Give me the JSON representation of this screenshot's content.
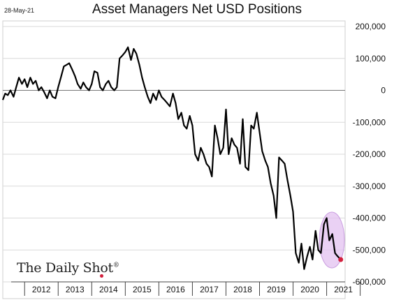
{
  "header": {
    "date_stamp": "28-May-21",
    "title": "Asset Managers Net USD Positions"
  },
  "branding": {
    "name": "The Daily Shot",
    "mark": "®"
  },
  "colors": {
    "line": "#000000",
    "highlight_fill": "#e3c2f0",
    "highlight_stroke": "#c99ce0",
    "end_point": "#d21f3c",
    "grid": "#d9d9d9",
    "zero_line": "#777777"
  },
  "chart_data": {
    "type": "line",
    "title": "Asset Managers Net USD Positions",
    "xlabel": "",
    "ylabel": "",
    "ylim": [
      -600000,
      200000
    ],
    "xlim": [
      2011.35,
      2021.55
    ],
    "yticks": [
      200000,
      100000,
      0,
      -100000,
      -200000,
      -300000,
      -400000,
      -500000,
      -600000
    ],
    "ytick_labels": [
      "200,000",
      "100,000",
      "0",
      "-100,000",
      "-200,000",
      "-300,000",
      "-400,000",
      "-500,000",
      "-600,000"
    ],
    "x_categories": [
      "2012",
      "2013",
      "2014",
      "2015",
      "2016",
      "2017",
      "2018",
      "2019",
      "2020",
      "2021"
    ],
    "grid": true,
    "zero_line": true,
    "legend": "none",
    "highlight": "ellipse around 2021 values",
    "series": [
      {
        "name": "",
        "x": [
          2011.35,
          2011.42,
          2011.5,
          2011.58,
          2011.67,
          2011.75,
          2011.83,
          2011.92,
          2012.0,
          2012.08,
          2012.17,
          2012.25,
          2012.33,
          2012.42,
          2012.5,
          2012.58,
          2012.67,
          2012.75,
          2012.83,
          2012.92,
          2013.0,
          2013.08,
          2013.17,
          2013.25,
          2013.33,
          2013.42,
          2013.5,
          2013.58,
          2013.67,
          2013.75,
          2013.83,
          2013.92,
          2014.0,
          2014.08,
          2014.17,
          2014.25,
          2014.33,
          2014.42,
          2014.5,
          2014.58,
          2014.67,
          2014.75,
          2014.83,
          2014.92,
          2015.0,
          2015.08,
          2015.17,
          2015.25,
          2015.33,
          2015.42,
          2015.5,
          2015.58,
          2015.67,
          2015.75,
          2015.83,
          2015.92,
          2016.0,
          2016.08,
          2016.17,
          2016.25,
          2016.33,
          2016.42,
          2016.5,
          2016.58,
          2016.67,
          2016.75,
          2016.83,
          2016.92,
          2017.0,
          2017.08,
          2017.17,
          2017.25,
          2017.33,
          2017.42,
          2017.5,
          2017.58,
          2017.67,
          2017.75,
          2017.83,
          2017.92,
          2018.0,
          2018.08,
          2018.17,
          2018.25,
          2018.33,
          2018.42,
          2018.5,
          2018.58,
          2018.67,
          2018.75,
          2018.83,
          2018.92,
          2019.0,
          2019.08,
          2019.17,
          2019.25,
          2019.33,
          2019.42,
          2019.5,
          2019.58,
          2019.67,
          2019.75,
          2019.83,
          2019.92,
          2020.0,
          2020.08,
          2020.17,
          2020.25,
          2020.33,
          2020.42,
          2020.5,
          2020.58,
          2020.67,
          2020.75,
          2020.83,
          2020.92,
          2021.0,
          2021.08,
          2021.17,
          2021.25,
          2021.33,
          2021.42
        ],
        "y": [
          -30000,
          -10000,
          -15000,
          0,
          -20000,
          10000,
          40000,
          20000,
          35000,
          10000,
          40000,
          20000,
          30000,
          0,
          10000,
          -5000,
          -25000,
          0,
          -20000,
          -25000,
          10000,
          40000,
          75000,
          80000,
          85000,
          65000,
          45000,
          20000,
          5000,
          25000,
          10000,
          0,
          20000,
          60000,
          55000,
          10000,
          0,
          20000,
          30000,
          10000,
          0,
          10000,
          100000,
          110000,
          120000,
          135000,
          95000,
          130000,
          115000,
          80000,
          40000,
          10000,
          -20000,
          -40000,
          -10000,
          -30000,
          0,
          -20000,
          -30000,
          -40000,
          -50000,
          -10000,
          -40000,
          -90000,
          -70000,
          -110000,
          -120000,
          -80000,
          -110000,
          -200000,
          -220000,
          -180000,
          -200000,
          -230000,
          -240000,
          -270000,
          -110000,
          -150000,
          -200000,
          -180000,
          -60000,
          -200000,
          -150000,
          -170000,
          -180000,
          -230000,
          -90000,
          -240000,
          -250000,
          -110000,
          -120000,
          -70000,
          -130000,
          -190000,
          -220000,
          -240000,
          -290000,
          -330000,
          -400000,
          -210000,
          -220000,
          -230000,
          -280000,
          -330000,
          -380000,
          -510000,
          -540000,
          -480000,
          -560000,
          -520000,
          -490000,
          -530000,
          -440000,
          -500000,
          -510000,
          -420000,
          -400000,
          -470000,
          -450000,
          -510000,
          -520000,
          -530000
        ]
      }
    ]
  }
}
